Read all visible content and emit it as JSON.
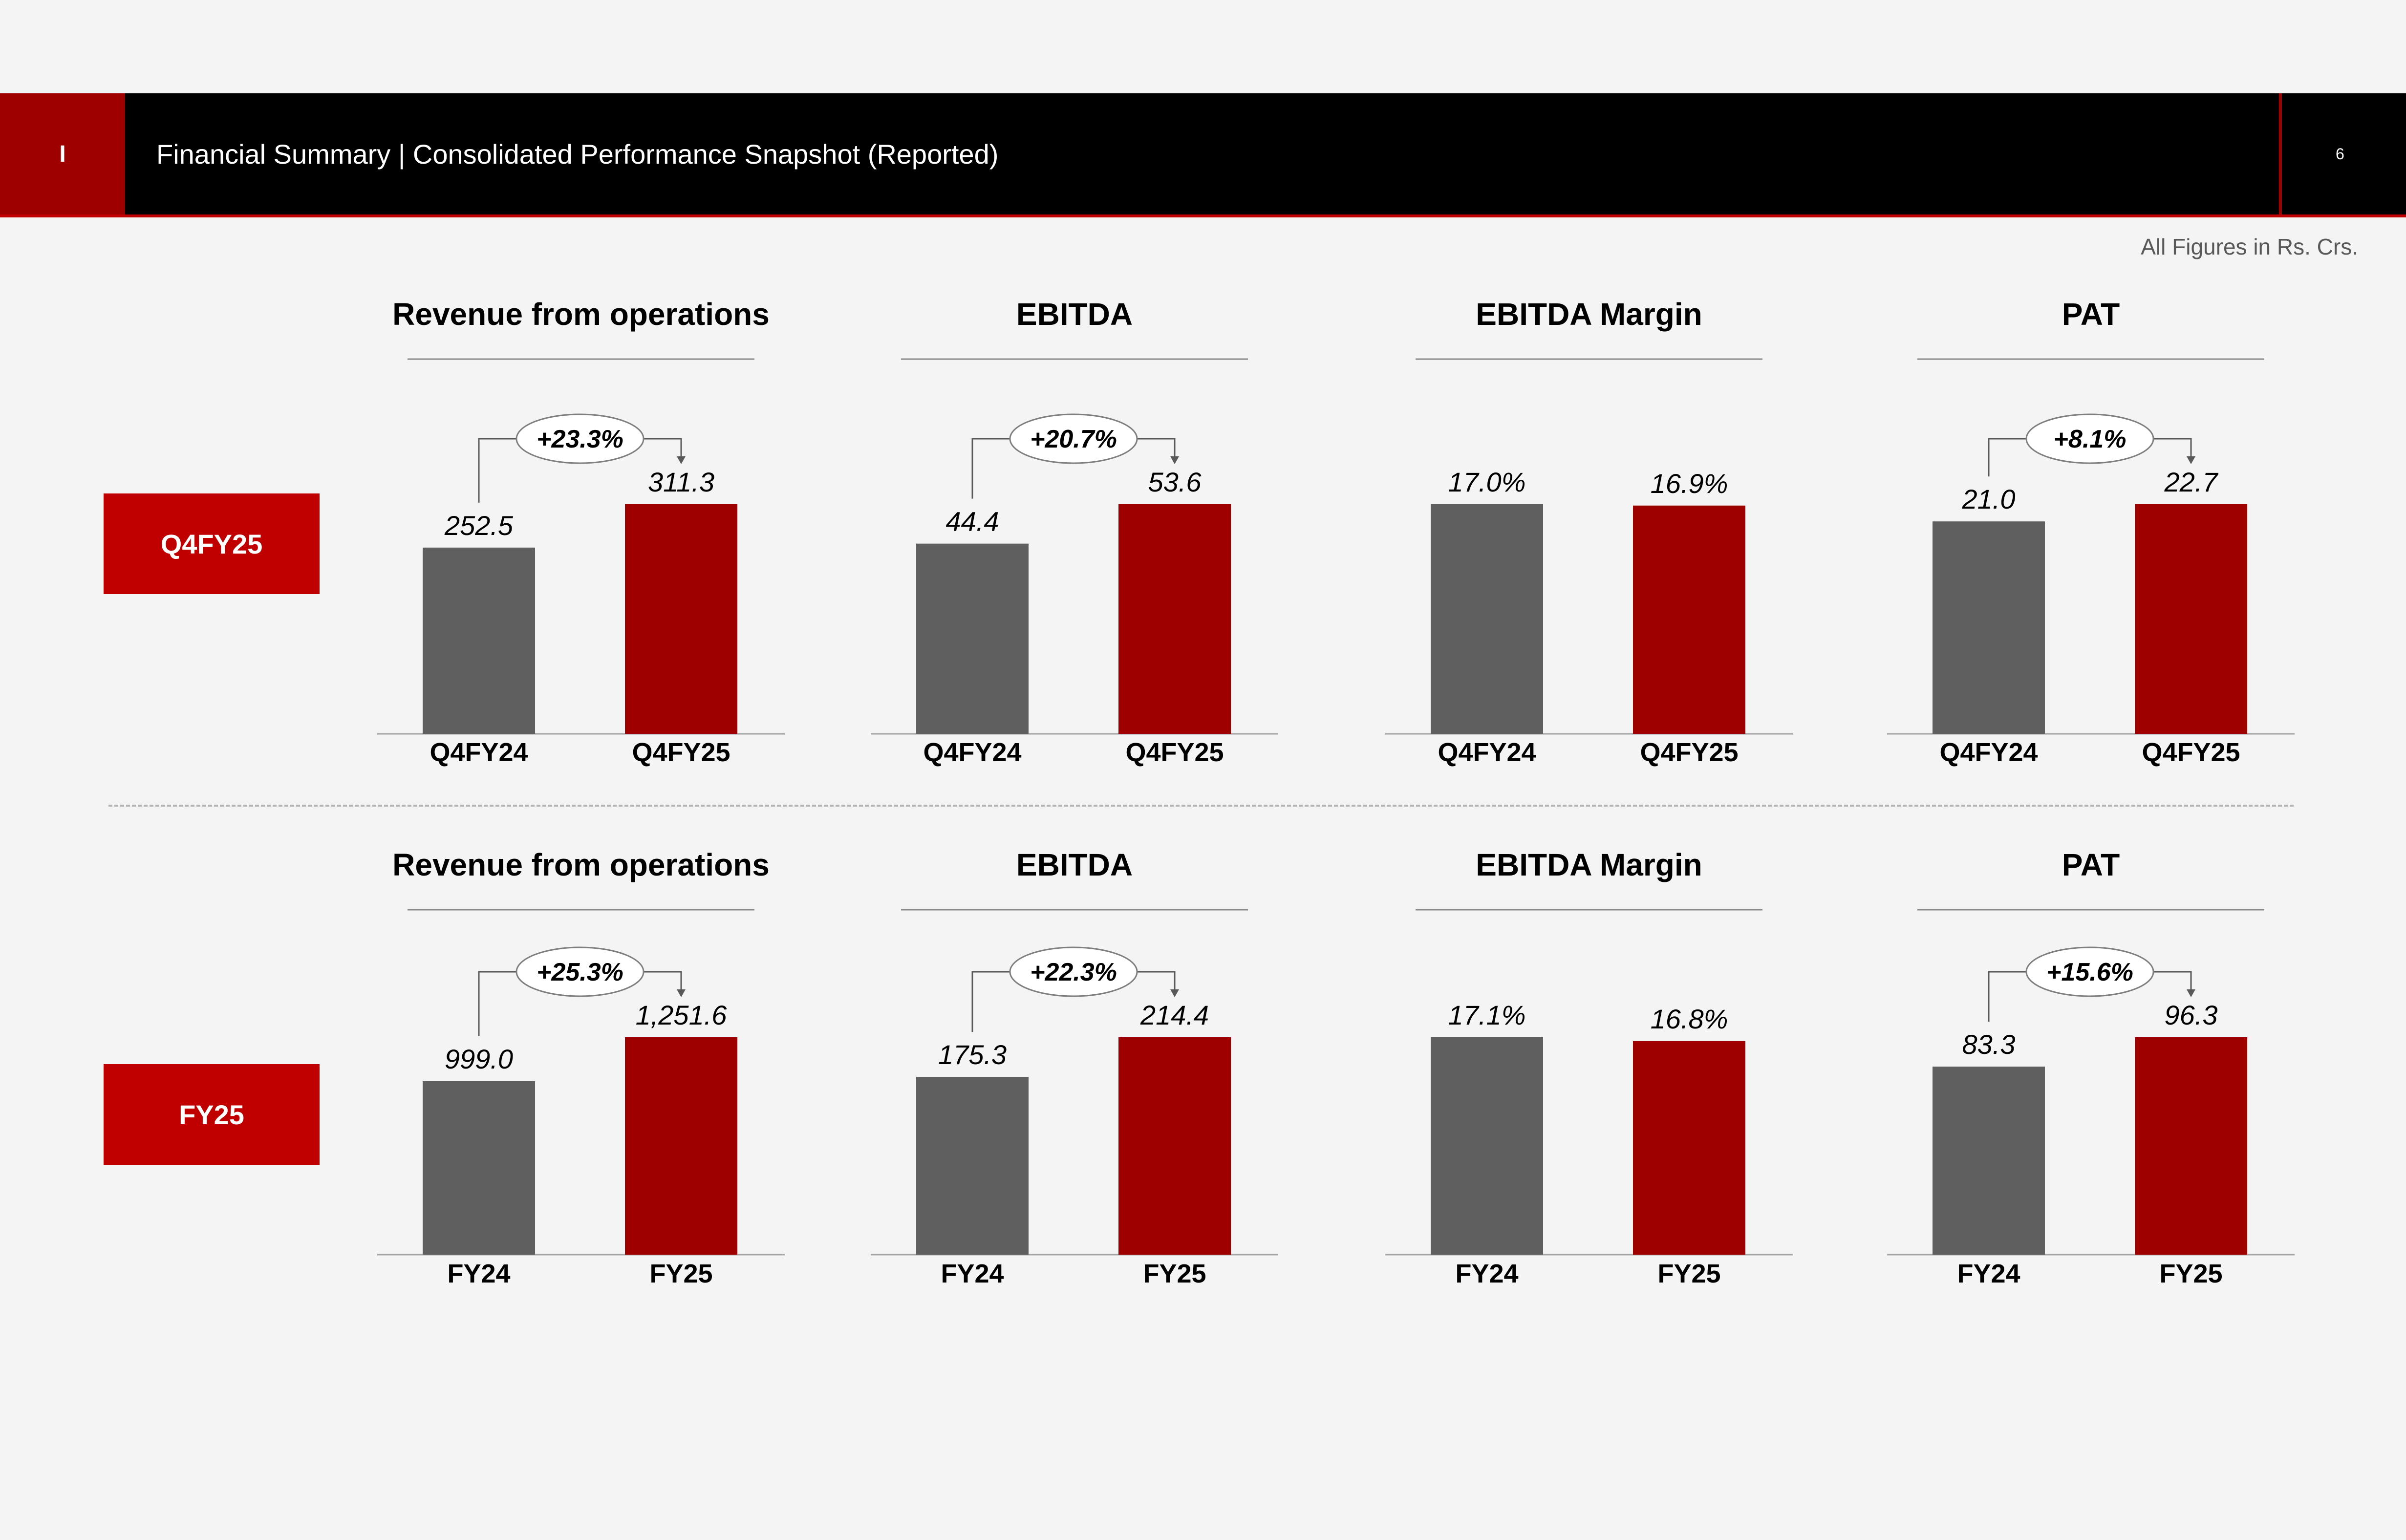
{
  "header": {
    "section_marker": "I",
    "title": "Financial Summary | Consolidated Performance Snapshot (Reported)",
    "page_number": "6"
  },
  "units_note": "All Figures in Rs. Crs.",
  "rows": [
    {
      "label": "Q4FY25"
    },
    {
      "label": "FY25"
    }
  ],
  "colors": {
    "previous": "#5f5f5f",
    "current": "#9e0000",
    "header_bg": "#000000",
    "accent": "#c00000"
  },
  "chart_data": [
    {
      "type": "bar",
      "title": "Revenue from operations",
      "categories": [
        "Q4FY24",
        "Q4FY25"
      ],
      "values": [
        252.5,
        311.3
      ],
      "value_labels": [
        "252.5",
        "311.3"
      ],
      "growth": "+23.3%"
    },
    {
      "type": "bar",
      "title": "EBITDA",
      "categories": [
        "Q4FY24",
        "Q4FY25"
      ],
      "values": [
        44.4,
        53.6
      ],
      "value_labels": [
        "44.4",
        "53.6"
      ],
      "growth": "+20.7%"
    },
    {
      "type": "bar",
      "title": "EBITDA Margin",
      "categories": [
        "Q4FY24",
        "Q4FY25"
      ],
      "values": [
        17.0,
        16.9
      ],
      "value_labels": [
        "17.0%",
        "16.9%"
      ],
      "growth": ""
    },
    {
      "type": "bar",
      "title": "PAT",
      "categories": [
        "Q4FY24",
        "Q4FY25"
      ],
      "values": [
        21.0,
        22.7
      ],
      "value_labels": [
        "21.0",
        "22.7"
      ],
      "growth": "+8.1%"
    },
    {
      "type": "bar",
      "title": "Revenue from operations",
      "categories": [
        "FY24",
        "FY25"
      ],
      "values": [
        999.0,
        1251.6
      ],
      "value_labels": [
        "999.0",
        "1,251.6"
      ],
      "growth": "+25.3%"
    },
    {
      "type": "bar",
      "title": "EBITDA",
      "categories": [
        "FY24",
        "FY25"
      ],
      "values": [
        175.3,
        214.4
      ],
      "value_labels": [
        "175.3",
        "214.4"
      ],
      "growth": "+22.3%"
    },
    {
      "type": "bar",
      "title": "EBITDA Margin",
      "categories": [
        "FY24",
        "FY25"
      ],
      "values": [
        17.1,
        16.8
      ],
      "value_labels": [
        "17.1%",
        "16.8%"
      ],
      "growth": ""
    },
    {
      "type": "bar",
      "title": "PAT",
      "categories": [
        "FY24",
        "FY25"
      ],
      "values": [
        83.3,
        96.3
      ],
      "value_labels": [
        "83.3",
        "96.3"
      ],
      "growth": "+15.6%"
    }
  ]
}
